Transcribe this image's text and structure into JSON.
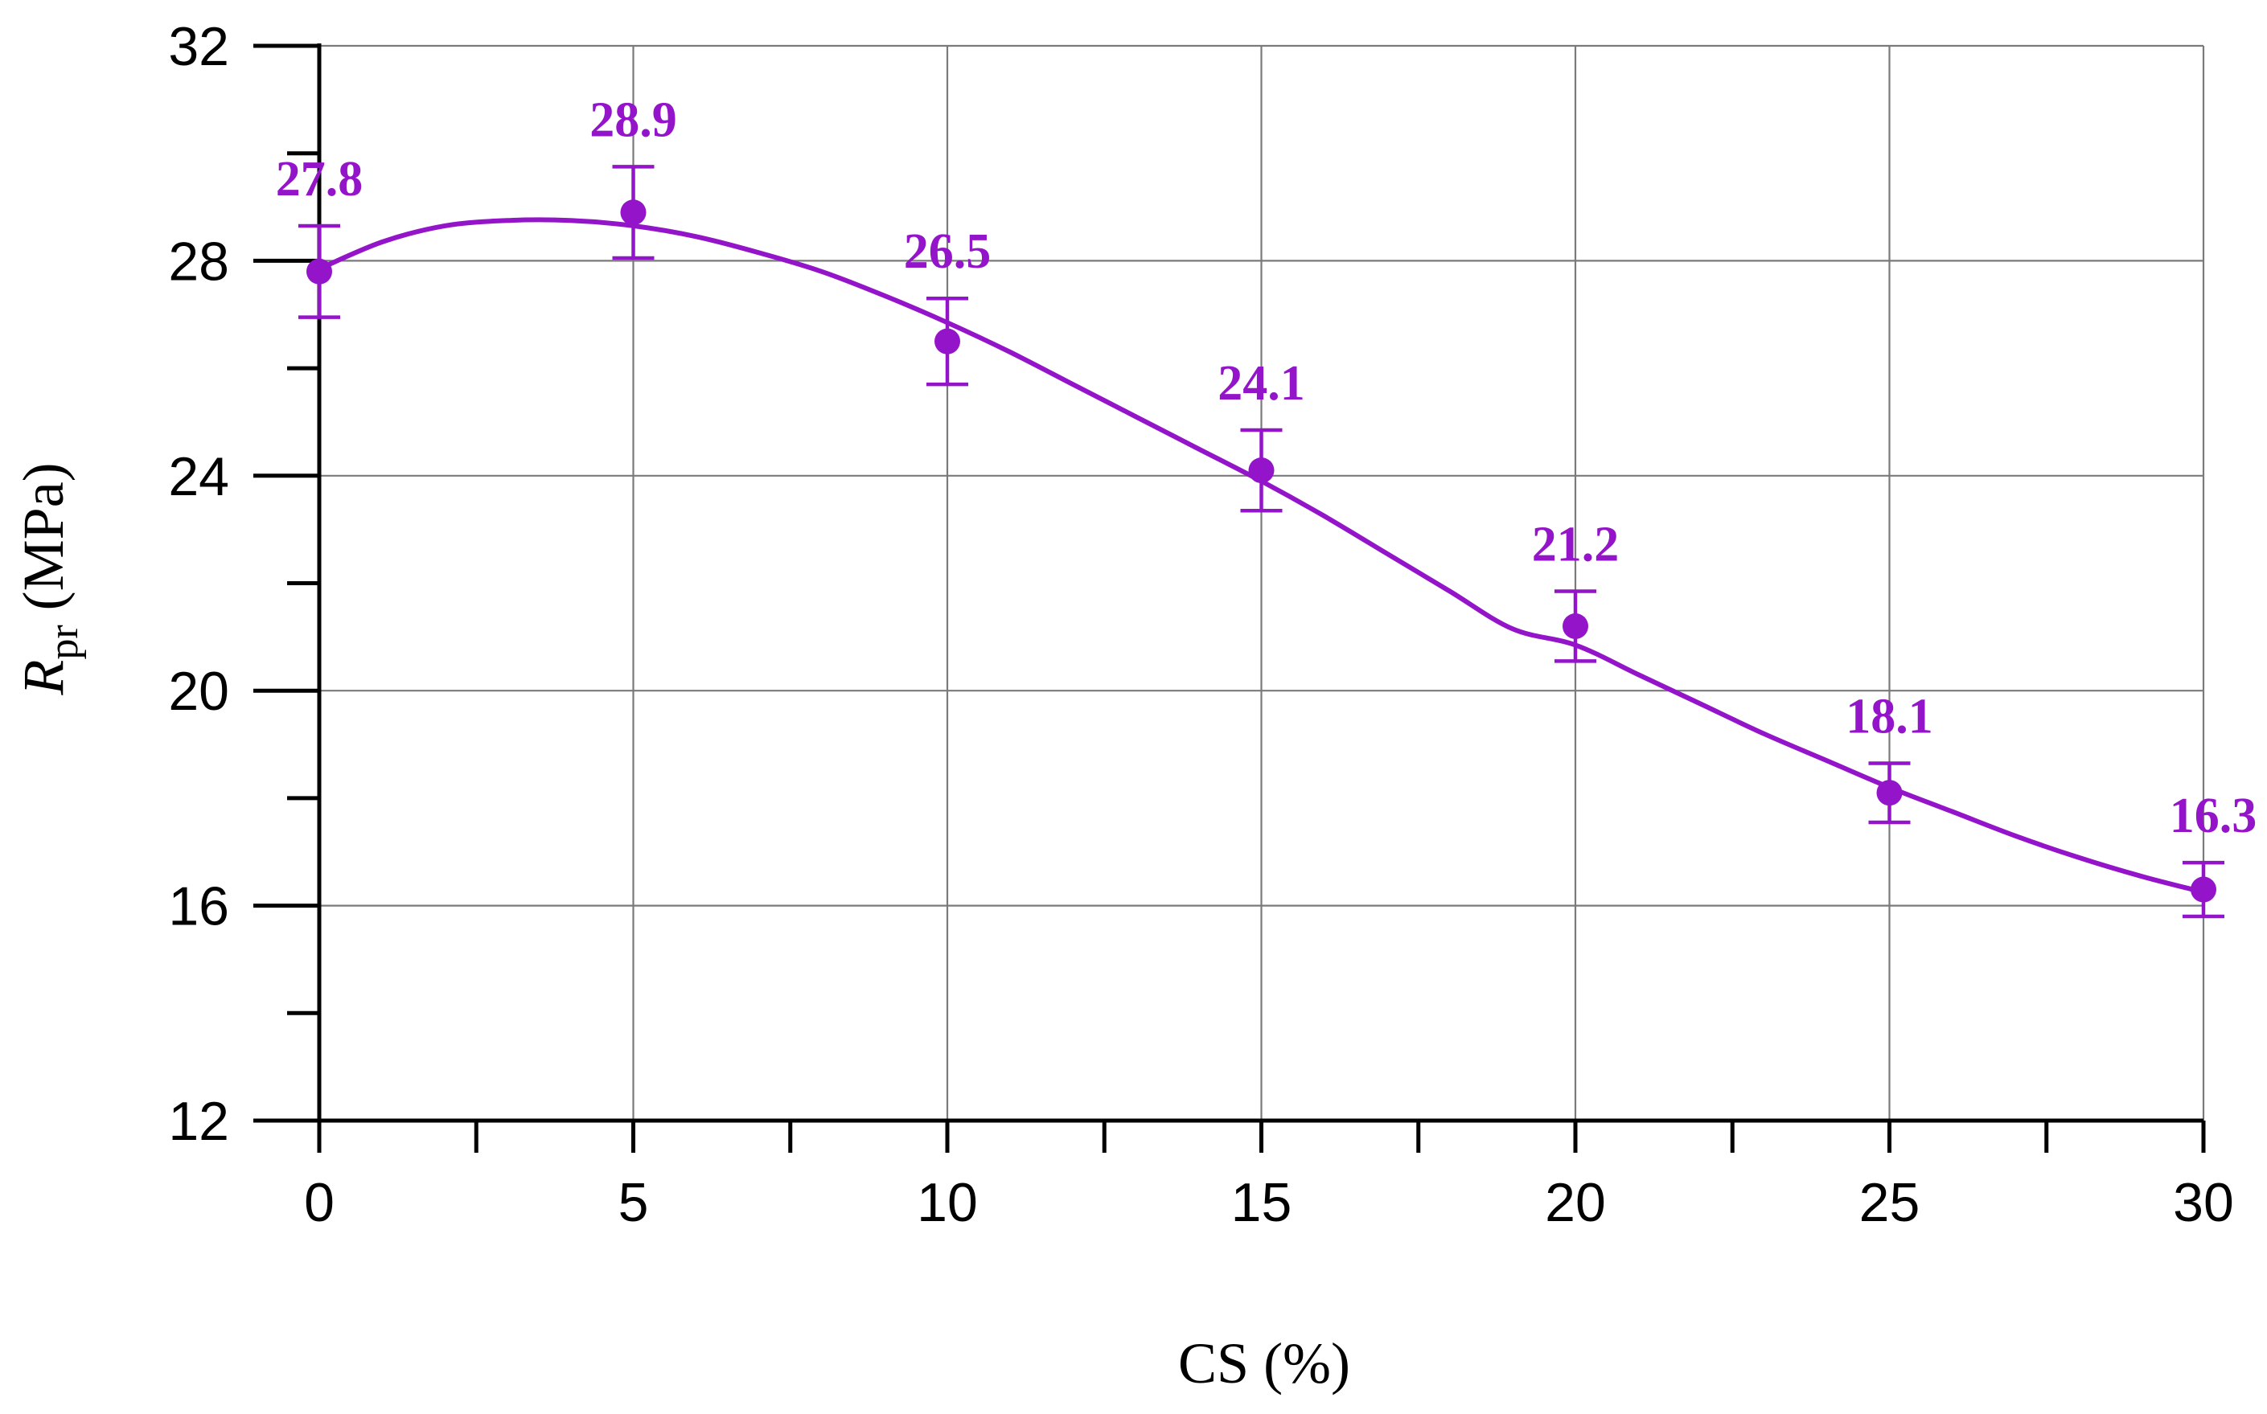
{
  "chart_data": {
    "type": "scatter",
    "title": "",
    "xlabel": "CS (%)",
    "ylabel": {
      "symbol": "R",
      "subscript": "pr",
      "unit": " (MPa)"
    },
    "xlim": [
      0,
      30
    ],
    "ylim": [
      12,
      32
    ],
    "x_ticks": [
      0,
      5,
      10,
      15,
      20,
      25,
      30
    ],
    "x_minor_ticks": [
      2.5,
      7.5,
      12.5,
      17.5,
      22.5,
      27.5
    ],
    "y_ticks": [
      12,
      16,
      20,
      24,
      28,
      32
    ],
    "y_minor_ticks": [
      14,
      18,
      22,
      26,
      30
    ],
    "grid": true,
    "color": "#9415c9",
    "series": [
      {
        "x": [
          0,
          5,
          10,
          15,
          20,
          25,
          30
        ],
        "y": [
          27.8,
          28.9,
          26.5,
          24.1,
          21.2,
          18.1,
          16.3
        ],
        "error": [
          0.85,
          0.85,
          0.8,
          0.75,
          0.65,
          0.55,
          0.5
        ],
        "labels": [
          "27.8",
          "28.9",
          "26.5",
          "24.1",
          "21.2",
          "18.1",
          "16.3"
        ]
      }
    ],
    "fit_curve": {
      "type": "smooth",
      "points": [
        [
          0,
          27.85
        ],
        [
          1,
          28.35
        ],
        [
          2,
          28.65
        ],
        [
          3,
          28.75
        ],
        [
          4,
          28.75
        ],
        [
          5,
          28.65
        ],
        [
          6,
          28.45
        ],
        [
          7,
          28.15
        ],
        [
          8,
          27.8
        ],
        [
          9,
          27.35
        ],
        [
          10,
          26.85
        ],
        [
          11,
          26.3
        ],
        [
          12,
          25.7
        ],
        [
          13,
          25.1
        ],
        [
          14,
          24.5
        ],
        [
          15,
          23.9
        ],
        [
          16,
          23.25
        ],
        [
          17,
          22.55
        ],
        [
          18,
          21.85
        ],
        [
          19,
          21.15
        ],
        [
          20,
          20.85
        ],
        [
          21,
          20.3
        ],
        [
          22,
          19.75
        ],
        [
          23,
          19.2
        ],
        [
          24,
          18.7
        ],
        [
          25,
          18.2
        ],
        [
          26,
          17.75
        ],
        [
          27,
          17.3
        ],
        [
          28,
          16.9
        ],
        [
          29,
          16.55
        ],
        [
          30,
          16.25
        ]
      ]
    }
  }
}
